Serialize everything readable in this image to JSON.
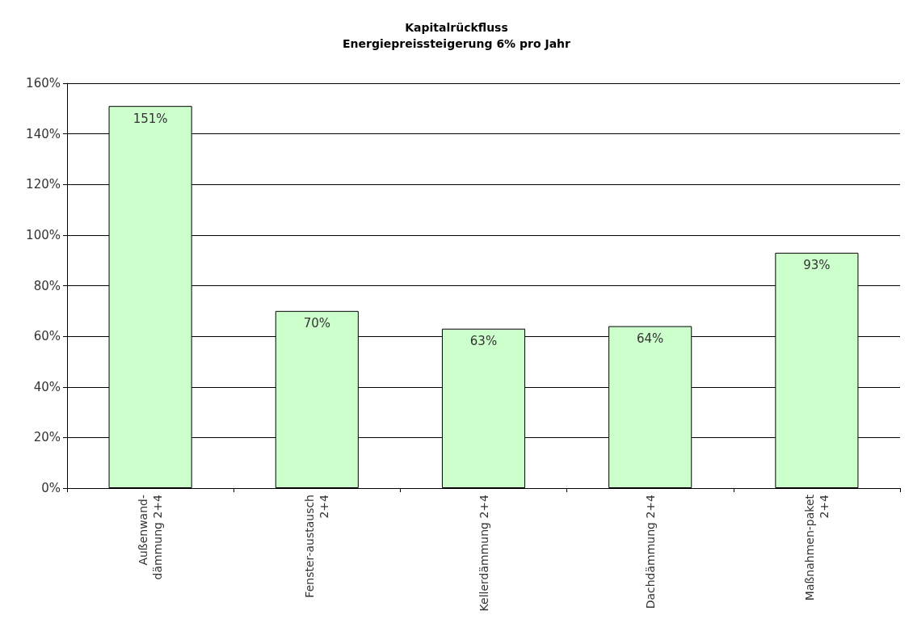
{
  "chart_data": {
    "type": "bar",
    "title": "Kapitalrückfluss",
    "subtitle": "Energiepreissteigerung 6% pro Jahr",
    "categories": [
      "Außenwand-\ndämmung 2+4",
      "Fenster-austausch\n2+4",
      "Kellerdämmung 2+4",
      "Dachdämmung 2+4",
      "Maßnahmen-paket\n2+4"
    ],
    "values": [
      151,
      70,
      63,
      64,
      93
    ],
    "value_labels": [
      "151%",
      "70%",
      "63%",
      "64%",
      "93%"
    ],
    "color": "#ccffcc",
    "ylim": [
      0,
      160
    ],
    "yticks": [
      {
        "value": 0,
        "label": "0%"
      },
      {
        "value": 20,
        "label": "20%"
      },
      {
        "value": 40,
        "label": "40%"
      },
      {
        "value": 60,
        "label": "60%"
      },
      {
        "value": 80,
        "label": "80%"
      },
      {
        "value": 100,
        "label": "100%"
      },
      {
        "value": 120,
        "label": "120%"
      },
      {
        "value": 140,
        "label": "140%"
      },
      {
        "value": 160,
        "label": "160%"
      }
    ],
    "grid": "y"
  }
}
